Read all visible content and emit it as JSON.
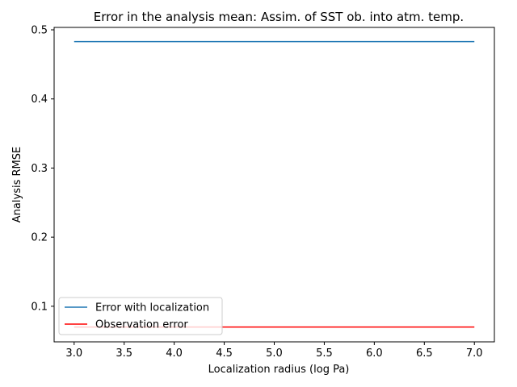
{
  "chart_data": {
    "type": "line",
    "title": "Error in the analysis mean: Assim. of SST ob. into atm. temp.",
    "xlabel": "Localization radius (log Pa)",
    "ylabel": "Analysis RMSE",
    "xlim": [
      2.8,
      7.2
    ],
    "ylim": [
      0.0485,
      0.5035
    ],
    "xticks": [
      3.0,
      3.5,
      4.0,
      4.5,
      5.0,
      5.5,
      6.0,
      6.5,
      7.0
    ],
    "xtick_labels": [
      "3.0",
      "3.5",
      "4.0",
      "4.5",
      "5.0",
      "5.5",
      "6.0",
      "6.5",
      "7.0"
    ],
    "yticks": [
      0.1,
      0.2,
      0.3,
      0.4,
      0.5
    ],
    "ytick_labels": [
      "0.1",
      "0.2",
      "0.3",
      "0.4",
      "0.5"
    ],
    "grid": false,
    "legend_position": "lower-left",
    "series": [
      {
        "name": "Error with localization",
        "color": "#1f77b4",
        "x": [
          3.0,
          3.5,
          4.0,
          4.5,
          5.0,
          5.5,
          6.0,
          6.5,
          7.0
        ],
        "y": [
          0.483,
          0.483,
          0.483,
          0.483,
          0.483,
          0.483,
          0.483,
          0.483,
          0.483
        ]
      },
      {
        "name": "Observation error",
        "color": "#ff0000",
        "x": [
          3.0,
          7.0
        ],
        "y": [
          0.07,
          0.07
        ]
      }
    ]
  }
}
